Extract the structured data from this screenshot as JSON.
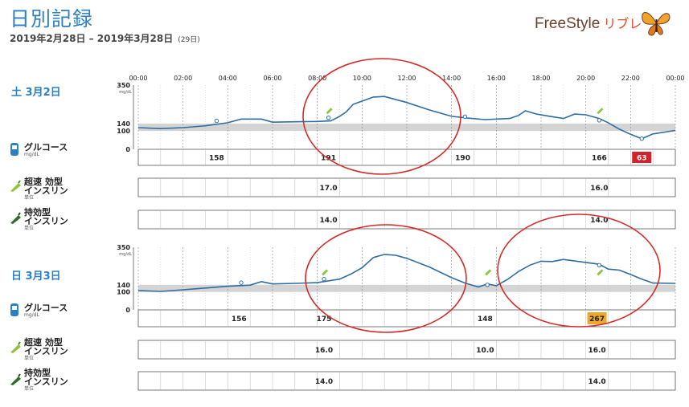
{
  "header": {
    "title": "日別記録",
    "date_range": "2019年2月28日 – 2019年3月28日",
    "day_count": "(29日)",
    "brand_main": "FreeStyle",
    "brand_sub": "リブレ"
  },
  "time_labels": [
    "00:00",
    "02:00",
    "04:00",
    "06:00",
    "08:00",
    "10:00",
    "12:00",
    "14:00",
    "16:00",
    "18:00",
    "20:00",
    "22:00",
    "00:00"
  ],
  "y_axis": {
    "unit": "mg/dL",
    "ticks": [
      "350",
      "140",
      "100",
      "0"
    ]
  },
  "icons": {
    "glucose": "glucose-meter-icon",
    "rapid_insulin": "rapid-insulin-pen-icon",
    "long_insulin": "long-insulin-pen-icon",
    "brand": "butterfly-logo-icon"
  },
  "colors": {
    "accent": "#2b80c4",
    "curve": "#2e6da4",
    "target_band": "#d4d4d4",
    "low": "#d6202a",
    "high": "#f0a82a",
    "highlight_oval": "#d62a2a"
  },
  "labels": {
    "glucose": "グルコース",
    "glucose_unit": "mg/dL",
    "rapid_line1": "超速 効型",
    "rapid_line2": "インスリン",
    "long_line1": "持効型",
    "long_line2": "インスリン",
    "insulin_unit": "単位"
  },
  "days": [
    {
      "weekday": "土",
      "date": "3月2日",
      "glucose_values": [
        {
          "label": "158",
          "hour": 3.5,
          "flag": "normal"
        },
        {
          "label": "191",
          "hour": 8.5,
          "flag": "normal"
        },
        {
          "label": "190",
          "hour": 14.5,
          "flag": "normal"
        },
        {
          "label": "166",
          "hour": 20.6,
          "flag": "normal"
        },
        {
          "label": "63",
          "hour": 22.5,
          "flag": "low"
        }
      ],
      "rapid_insulin": [
        {
          "label": "17.0",
          "hour": 8.5
        },
        {
          "label": "16.0",
          "hour": 20.6
        }
      ],
      "long_insulin": [
        {
          "label": "14.0",
          "hour": 8.5
        },
        {
          "label": "14.0",
          "hour": 20.6
        }
      ],
      "curve": [
        [
          0,
          118
        ],
        [
          1,
          113
        ],
        [
          2,
          118
        ],
        [
          3,
          128
        ],
        [
          4,
          145
        ],
        [
          4.6,
          165
        ],
        [
          5.5,
          165
        ],
        [
          6,
          148
        ],
        [
          7,
          150
        ],
        [
          8,
          152
        ],
        [
          8.6,
          155
        ],
        [
          9,
          180
        ],
        [
          9.3,
          205
        ],
        [
          9.6,
          245
        ],
        [
          10.5,
          285
        ],
        [
          11,
          288
        ],
        [
          12,
          255
        ],
        [
          13,
          215
        ],
        [
          14,
          180
        ],
        [
          14.7,
          170
        ],
        [
          15.5,
          162
        ],
        [
          16.6,
          168
        ],
        [
          17,
          185
        ],
        [
          17.3,
          210
        ],
        [
          17.8,
          192
        ],
        [
          18.4,
          180
        ],
        [
          19,
          168
        ],
        [
          19.5,
          192
        ],
        [
          20,
          188
        ],
        [
          20.6,
          168
        ],
        [
          21,
          145
        ],
        [
          21.5,
          110
        ],
        [
          22,
          82
        ],
        [
          22.5,
          58
        ],
        [
          23,
          84
        ],
        [
          24,
          103
        ]
      ],
      "markers": [
        [
          3.5,
          155
        ],
        [
          8.5,
          172
        ],
        [
          14.6,
          178
        ],
        [
          20.6,
          158
        ],
        [
          22.5,
          58
        ]
      ],
      "rapid_pens": [
        8.5,
        20.6
      ]
    },
    {
      "weekday": "日",
      "date": "3月3日",
      "glucose_values": [
        {
          "label": "156",
          "hour": 4.5,
          "flag": "normal"
        },
        {
          "label": "175",
          "hour": 8.3,
          "flag": "normal"
        },
        {
          "label": "148",
          "hour": 15.5,
          "flag": "normal"
        },
        {
          "label": "267",
          "hour": 20.5,
          "flag": "high"
        }
      ],
      "rapid_insulin": [
        {
          "label": "16.0",
          "hour": 8.3
        },
        {
          "label": "10.0",
          "hour": 15.5
        },
        {
          "label": "16.0",
          "hour": 20.5
        }
      ],
      "long_insulin": [
        {
          "label": "14.0",
          "hour": 8.3
        },
        {
          "label": "14.0",
          "hour": 20.5
        }
      ],
      "curve": [
        [
          0,
          108
        ],
        [
          1,
          103
        ],
        [
          2,
          112
        ],
        [
          3,
          122
        ],
        [
          4,
          132
        ],
        [
          5,
          138
        ],
        [
          5.5,
          158
        ],
        [
          6,
          145
        ],
        [
          7,
          148
        ],
        [
          8,
          152
        ],
        [
          9,
          172
        ],
        [
          9.5,
          200
        ],
        [
          10,
          235
        ],
        [
          10.5,
          292
        ],
        [
          11,
          310
        ],
        [
          11.5,
          305
        ],
        [
          12,
          288
        ],
        [
          13,
          240
        ],
        [
          14,
          180
        ],
        [
          14.6,
          150
        ],
        [
          15.2,
          128
        ],
        [
          15.6,
          145
        ],
        [
          16,
          135
        ],
        [
          16.5,
          170
        ],
        [
          17,
          215
        ],
        [
          17.5,
          250
        ],
        [
          18,
          272
        ],
        [
          18.5,
          270
        ],
        [
          19,
          282
        ],
        [
          20,
          265
        ],
        [
          20.6,
          255
        ],
        [
          21,
          228
        ],
        [
          21.5,
          222
        ],
        [
          22,
          198
        ],
        [
          22.5,
          172
        ],
        [
          23,
          150
        ],
        [
          24,
          148
        ]
      ],
      "markers": [
        [
          4.6,
          152
        ],
        [
          8.3,
          172
        ],
        [
          15.6,
          140
        ],
        [
          20.6,
          250
        ]
      ],
      "rapid_pens": [
        8.3,
        15.6,
        20.6
      ]
    }
  ]
}
